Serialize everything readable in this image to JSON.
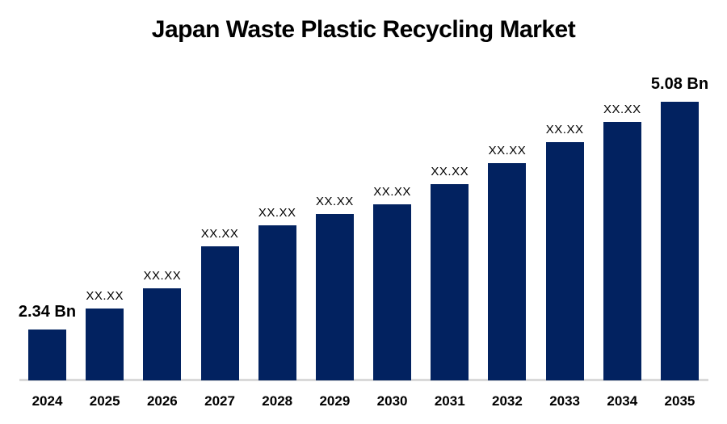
{
  "chart_data": {
    "type": "bar",
    "title": "Japan Waste Plastic Recycling Market",
    "categories": [
      "2024",
      "2025",
      "2026",
      "2027",
      "2028",
      "2029",
      "2030",
      "2031",
      "2032",
      "2033",
      "2034",
      "2035"
    ],
    "values": [
      2.34,
      2.59,
      2.84,
      3.34,
      3.59,
      3.73,
      3.85,
      4.09,
      4.34,
      4.59,
      4.84,
      5.08
    ],
    "bar_labels": [
      "2.34 Bn",
      "XX.XX",
      "XX.XX",
      "XX.XX",
      "XX.XX",
      "XX.XX",
      "XX.XX",
      "XX.XX",
      "XX.XX",
      "XX.XX",
      "XX.XX",
      "5.08 Bn"
    ],
    "unit": "Bn",
    "first_value_label": "2.34 Bn",
    "last_value_label": "5.08 Bn",
    "bar_color": "#022260",
    "axis_line_color": "#d9d9d9",
    "text_color": "#000000",
    "ylim": [
      1.73,
      5.08
    ],
    "xlabel": "",
    "ylabel": "",
    "grid": false,
    "legend": false,
    "value_axis_visible": false
  }
}
